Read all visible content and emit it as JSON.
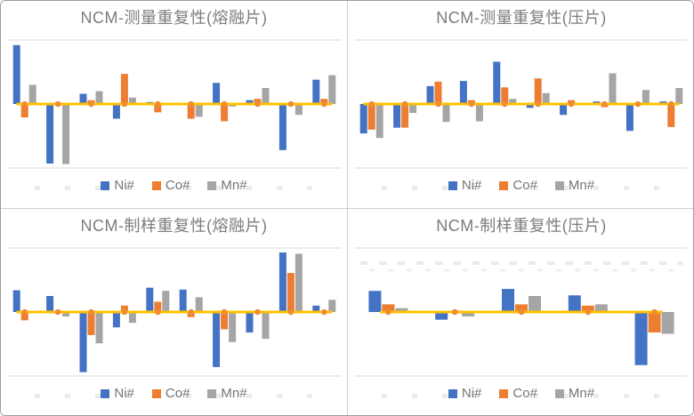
{
  "colors": {
    "ni": "#4472C4",
    "co": "#ED7D31",
    "mn": "#A5A5A5",
    "zero_line": "#FFC000",
    "marker": "#ED8E33",
    "gridline": "#D9D9D9",
    "title_text": "#7D7D7D",
    "legend_text": "#757575"
  },
  "chart_data": [
    {
      "type": "bar",
      "title": "NCM-测量重复性(熔融片)",
      "note": "y-axis unlabeled; values normalized so one gridline spacing = 1",
      "ylim": [
        -1.1,
        1.1
      ],
      "gridlines_at": [
        -1,
        1
      ],
      "legend_position": "bottom",
      "categories": [
        "",
        "",
        "",
        "",
        "",
        "",
        "",
        "",
        "",
        ""
      ],
      "series": [
        {
          "name": "Ni#",
          "color": "#4472C4",
          "values": [
            0.92,
            -0.93,
            0.16,
            -0.23,
            0.03,
            0,
            0.33,
            0.06,
            -0.72,
            0.38
          ]
        },
        {
          "name": "Co#",
          "color": "#ED7D31",
          "values": [
            -0.21,
            0,
            0.06,
            0.47,
            -0.13,
            -0.23,
            -0.27,
            0.08,
            0,
            0.08
          ]
        },
        {
          "name": "Mn#",
          "color": "#A5A5A5",
          "values": [
            0.3,
            -0.94,
            0.2,
            0.1,
            0,
            -0.2,
            -0.04,
            0.25,
            -0.17,
            0.45
          ]
        }
      ],
      "line_series": {
        "name": "zero-line",
        "color": "#FFC000",
        "values": [
          0,
          0,
          0,
          0,
          0,
          0,
          0,
          0,
          0,
          0
        ]
      },
      "faint_dashes_in_plot": false
    },
    {
      "type": "bar",
      "title": "NCM-测量重复性(压片)",
      "note": "y-axis unlabeled; values normalized so one gridline spacing = 1",
      "ylim": [
        -1.1,
        1.1
      ],
      "gridlines_at": [
        -1,
        1
      ],
      "legend_position": "bottom",
      "categories": [
        "",
        "",
        "",
        "",
        "",
        "",
        "",
        "",
        "",
        ""
      ],
      "series": [
        {
          "name": "Ni#",
          "color": "#4472C4",
          "values": [
            -0.46,
            -0.37,
            0.28,
            0.36,
            0.66,
            -0.06,
            -0.17,
            0.04,
            -0.42,
            0.04
          ]
        },
        {
          "name": "Co#",
          "color": "#ED7D31",
          "values": [
            -0.4,
            -0.37,
            0.35,
            0.06,
            0.26,
            0.4,
            0.06,
            -0.05,
            0,
            -0.36
          ]
        },
        {
          "name": "Mn#",
          "color": "#A5A5A5",
          "values": [
            -0.53,
            -0.14,
            -0.28,
            -0.27,
            0.08,
            0.17,
            0,
            0.48,
            0.22,
            0.25
          ]
        }
      ],
      "line_series": {
        "name": "zero-line",
        "color": "#FFC000",
        "values": [
          0,
          0,
          0,
          0,
          0,
          0,
          0,
          0,
          0,
          0
        ]
      },
      "faint_dashes_in_plot": false
    },
    {
      "type": "bar",
      "title": "NCM-制样重复性(熔融片)",
      "note": "y-axis unlabeled; values normalized so one gridline spacing = 1",
      "ylim": [
        -1.1,
        1.1
      ],
      "gridlines_at": [
        -1,
        1
      ],
      "legend_position": "bottom",
      "categories": [
        "",
        "",
        "",
        "",
        "",
        "",
        "",
        "",
        "",
        ""
      ],
      "series": [
        {
          "name": "Ni#",
          "color": "#4472C4",
          "values": [
            0.34,
            0.25,
            -0.94,
            -0.24,
            0.38,
            0.35,
            -0.86,
            -0.32,
            0.93,
            0.1
          ]
        },
        {
          "name": "Co#",
          "color": "#ED7D31",
          "values": [
            -0.13,
            0,
            -0.36,
            0.1,
            0.16,
            -0.08,
            -0.27,
            0,
            0.61,
            0
          ]
        },
        {
          "name": "Mn#",
          "color": "#A5A5A5",
          "values": [
            0,
            -0.07,
            -0.49,
            -0.17,
            0.33,
            0.23,
            -0.47,
            -0.42,
            0.91,
            0.19
          ]
        }
      ],
      "line_series": {
        "name": "zero-line",
        "color": "#FFC000",
        "values": [
          0,
          0,
          0,
          0,
          0,
          0,
          0,
          0,
          0,
          0
        ]
      },
      "faint_dashes_in_plot": false
    },
    {
      "type": "bar",
      "title": "NCM-制样重复性(压片)",
      "note": "y-axis unlabeled; values normalized so one gridline spacing = 1",
      "ylim": [
        -1.1,
        1.1
      ],
      "gridlines_at": [
        -1,
        1
      ],
      "legend_position": "bottom",
      "categories": [
        "",
        "",
        "",
        "",
        ""
      ],
      "series": [
        {
          "name": "Ni#",
          "color": "#4472C4",
          "values": [
            0.33,
            -0.12,
            0.36,
            0.26,
            -0.83
          ]
        },
        {
          "name": "Co#",
          "color": "#ED7D31",
          "values": [
            0.12,
            0,
            0.12,
            0.1,
            -0.32
          ]
        },
        {
          "name": "Mn#",
          "color": "#A5A5A5",
          "values": [
            0.06,
            -0.07,
            0.25,
            0.12,
            -0.34
          ]
        }
      ],
      "line_series": {
        "name": "zero-line",
        "color": "#FFC000",
        "values": [
          0,
          0,
          0,
          0,
          0
        ]
      },
      "faint_dashes_in_plot": true
    }
  ]
}
